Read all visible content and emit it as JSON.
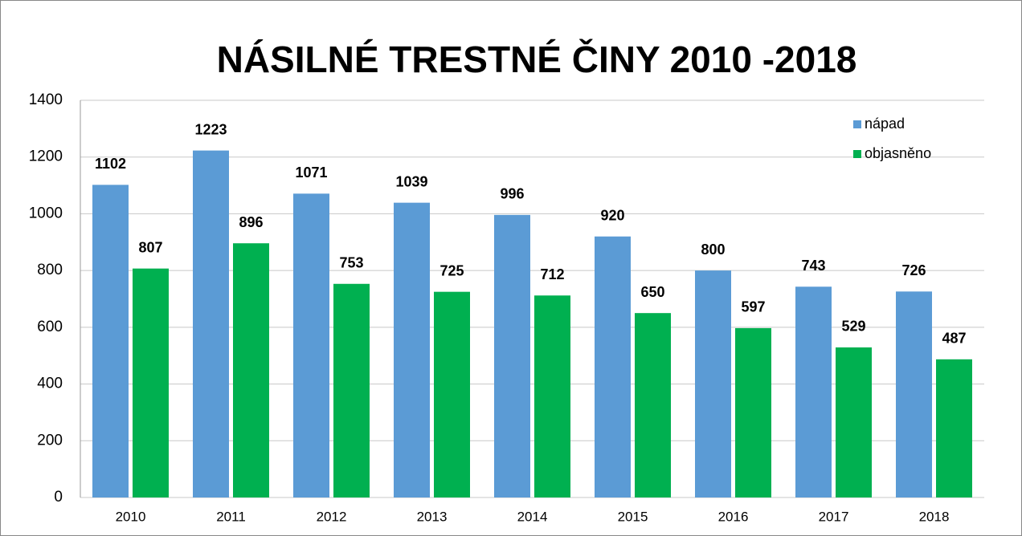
{
  "chart_data": {
    "type": "bar",
    "title": "NÁSILNÉ TRESTNÉ ČINY 2010 -2018",
    "categories": [
      "2010",
      "2011",
      "2012",
      "2013",
      "2014",
      "2015",
      "2016",
      "2017",
      "2018"
    ],
    "series": [
      {
        "name": "nápad",
        "color": "#5b9bd5",
        "values": [
          1102,
          1223,
          1071,
          1039,
          996,
          920,
          800,
          743,
          726
        ]
      },
      {
        "name": "objasněno",
        "color": "#00b050",
        "values": [
          807,
          896,
          753,
          725,
          712,
          650,
          597,
          529,
          487
        ]
      }
    ],
    "ylim": [
      0,
      1400
    ],
    "yticks": [
      0,
      200,
      400,
      600,
      800,
      1000,
      1200,
      1400
    ],
    "grid": true,
    "legend": "top-right"
  }
}
